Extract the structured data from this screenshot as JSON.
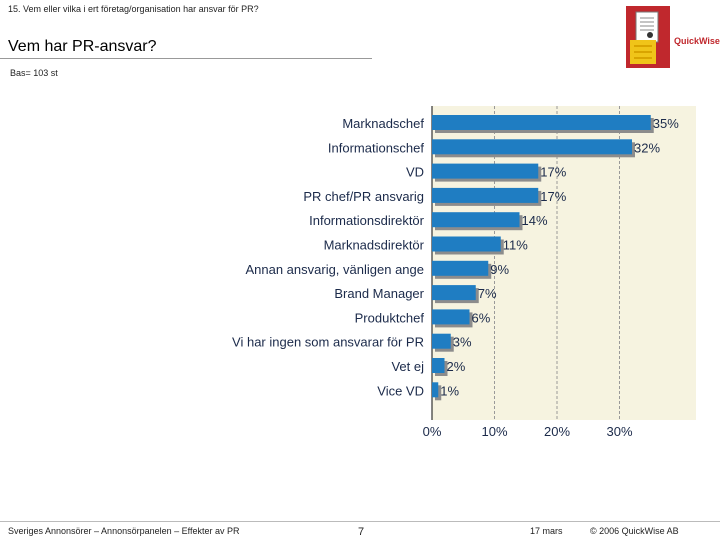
{
  "header": {
    "question": "15. Vem eller vilka i ert företag/organisation har ansvar för PR?",
    "title": "Vem  har PR-ansvar?",
    "base": "Bas= 103 st",
    "brand": "QuickWise"
  },
  "chart_data": {
    "type": "bar",
    "orientation": "horizontal",
    "title": "Vem har PR-ansvar?",
    "categories": [
      "Marknadschef",
      "Informationschef",
      "VD",
      "PR chef/PR ansvarig",
      "Informationsdirektör",
      "Marknadsdirektör",
      "Annan ansvarig, vänligen ange",
      "Brand Manager",
      "Produktchef",
      "Vi har ingen som ansvarar för PR",
      "Vet ej",
      "Vice VD"
    ],
    "values": [
      35,
      32,
      17,
      17,
      14,
      11,
      9,
      7,
      6,
      3,
      2,
      1
    ],
    "value_labels": [
      "35%",
      "32%",
      "17%",
      "17%",
      "14%",
      "11%",
      "9%",
      "7%",
      "6%",
      "3%",
      "2%",
      "1%"
    ],
    "xlim": [
      0,
      42
    ],
    "xticks": [
      0,
      10,
      20,
      30
    ],
    "xtick_labels": [
      "0%",
      "10%",
      "20%",
      "30%"
    ],
    "bar_color": "#1f7dc2",
    "shadow_color": "#8c8c8c",
    "plot_background": "#f6f3e0"
  },
  "footer": {
    "left": "Sveriges Annonsörer – Annonsörpanelen – Effekter av PR",
    "page": "7",
    "date": "17 mars",
    "copyright": "© 2006 QuickWise AB"
  }
}
